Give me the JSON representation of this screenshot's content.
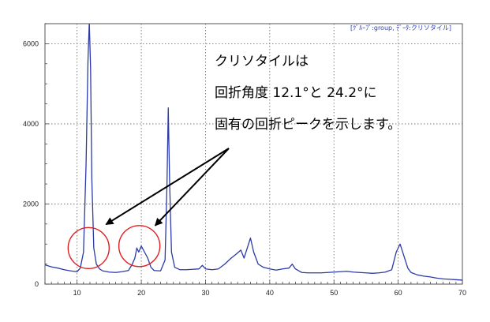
{
  "chart_data": {
    "type": "line",
    "header_label": "[ｸﾞﾙｰﾌﾟ:group, ﾃﾞｰﾀ:クリソタイル]",
    "xlim": [
      5,
      70
    ],
    "ylim": [
      0,
      6500
    ],
    "x_ticks": [
      10,
      20,
      30,
      40,
      50,
      60,
      70
    ],
    "y_ticks": [
      0,
      2000,
      4000,
      6000
    ],
    "grid": true,
    "series": [
      {
        "color": "#2b3aa8",
        "x": [
          5,
          6,
          7,
          8,
          9,
          10,
          10.5,
          11,
          11.4,
          11.7,
          11.9,
          12.1,
          12.3,
          12.6,
          13.0,
          13.5,
          14,
          15,
          16,
          17,
          18,
          18.6,
          19.0,
          19.3,
          19.6,
          20.0,
          20.5,
          21.0,
          21.5,
          22,
          23,
          23.7,
          24.0,
          24.2,
          24.4,
          24.7,
          25.2,
          26,
          27,
          28,
          29,
          29.5,
          30,
          31,
          32,
          33,
          34,
          34.8,
          35.5,
          36,
          36.5,
          37.0,
          37.5,
          38.2,
          39,
          40,
          41,
          42,
          43,
          43.5,
          44,
          45,
          46,
          47,
          48,
          49,
          50,
          51,
          52,
          53,
          54,
          55,
          56,
          57,
          58,
          59,
          59.7,
          60.3,
          60.9,
          61.5,
          62,
          63,
          64,
          65,
          66,
          67,
          68,
          69,
          70
        ],
        "y": [
          480,
          430,
          400,
          360,
          330,
          310,
          400,
          800,
          3000,
          5600,
          6600,
          5400,
          2600,
          900,
          500,
          380,
          330,
          300,
          290,
          310,
          340,
          500,
          650,
          900,
          800,
          950,
          800,
          650,
          420,
          340,
          330,
          600,
          2500,
          4400,
          2600,
          800,
          420,
          360,
          360,
          370,
          380,
          470,
          380,
          360,
          380,
          500,
          650,
          750,
          850,
          650,
          900,
          1150,
          800,
          500,
          420,
          380,
          350,
          380,
          400,
          500,
          380,
          290,
          280,
          280,
          280,
          290,
          300,
          310,
          320,
          300,
          290,
          280,
          270,
          280,
          300,
          360,
          800,
          1000,
          700,
          400,
          290,
          230,
          200,
          180,
          150,
          130,
          120,
          110,
          100
        ]
      }
    ],
    "annotation": {
      "lines": [
        "クリソタイルは",
        "回折角度 12.1°と 24.2°に",
        "固有の回折ピークを示します。"
      ],
      "circles_at": [
        {
          "x": 11.8,
          "y": 900
        },
        {
          "x": 19.7,
          "y": 950
        }
      ],
      "circle_color": "#e02020",
      "arrow_color": "#000000"
    }
  }
}
